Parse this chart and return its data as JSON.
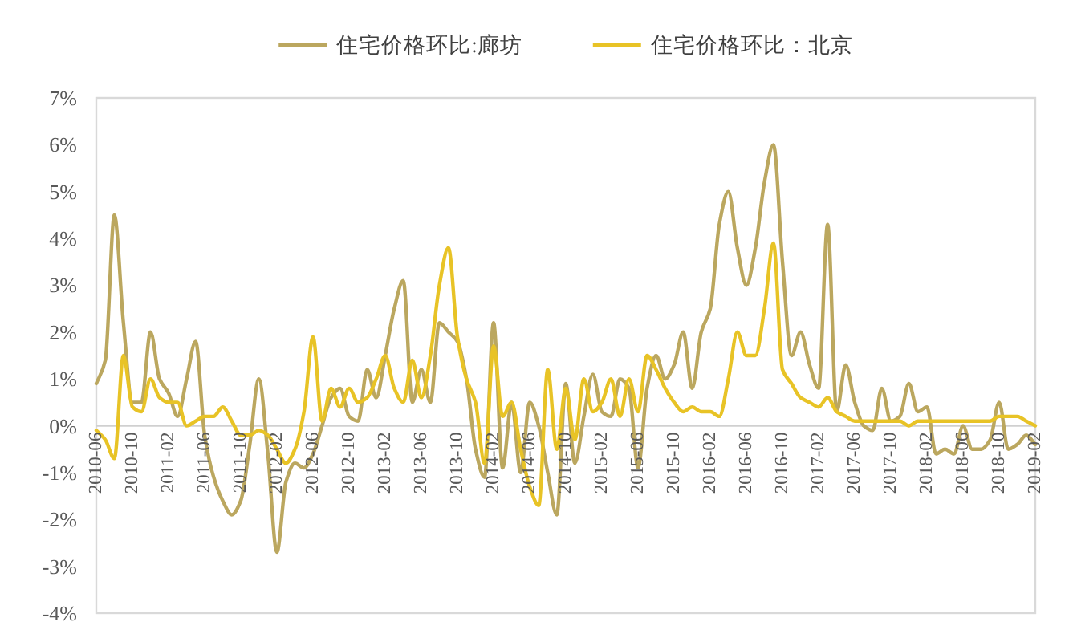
{
  "chart_data": {
    "type": "line",
    "x": [
      "2010-06",
      "2010-07",
      "2010-08",
      "2010-09",
      "2010-10",
      "2010-11",
      "2010-12",
      "2011-01",
      "2011-02",
      "2011-03",
      "2011-04",
      "2011-05",
      "2011-06",
      "2011-07",
      "2011-08",
      "2011-09",
      "2011-10",
      "2011-11",
      "2011-12",
      "2012-01",
      "2012-02",
      "2012-03",
      "2012-04",
      "2012-05",
      "2012-06",
      "2012-07",
      "2012-08",
      "2012-09",
      "2012-10",
      "2012-11",
      "2012-12",
      "2013-01",
      "2013-02",
      "2013-03",
      "2013-04",
      "2013-05",
      "2013-06",
      "2013-07",
      "2013-08",
      "2013-09",
      "2013-10",
      "2013-11",
      "2013-12",
      "2014-01",
      "2014-02",
      "2014-03",
      "2014-04",
      "2014-05",
      "2014-06",
      "2014-07",
      "2014-08",
      "2014-09",
      "2014-10",
      "2014-11",
      "2014-12",
      "2015-01",
      "2015-02",
      "2015-03",
      "2015-04",
      "2015-05",
      "2015-06",
      "2015-07",
      "2015-08",
      "2015-09",
      "2015-10",
      "2015-11",
      "2015-12",
      "2016-01",
      "2016-02",
      "2016-03",
      "2016-04",
      "2016-05",
      "2016-06",
      "2016-07",
      "2016-08",
      "2016-09",
      "2016-10",
      "2016-11",
      "2016-12",
      "2017-01",
      "2017-02",
      "2017-03",
      "2017-04",
      "2017-05",
      "2017-06",
      "2017-07",
      "2017-08",
      "2017-09",
      "2017-10",
      "2017-11",
      "2017-12",
      "2018-01",
      "2018-02",
      "2018-03",
      "2018-04",
      "2018-05",
      "2018-06",
      "2018-07",
      "2018-08",
      "2018-09",
      "2018-10",
      "2018-11",
      "2018-12",
      "2019-01",
      "2019-02"
    ],
    "series": [
      {
        "name": "住宅价格环比:廊坊",
        "color": "#bba75f",
        "values": [
          0.9,
          1.4,
          4.5,
          2.2,
          0.5,
          0.5,
          2.0,
          1.0,
          0.7,
          0.2,
          1.0,
          1.8,
          -0.2,
          -1.1,
          -1.6,
          -1.9,
          -1.6,
          -0.4,
          1.0,
          -0.6,
          -2.7,
          -1.2,
          -0.8,
          -0.9,
          -0.6,
          0.0,
          0.6,
          0.8,
          0.2,
          0.1,
          1.2,
          0.6,
          1.5,
          2.5,
          3.1,
          0.5,
          1.2,
          0.5,
          2.2,
          2.0,
          1.8,
          1.0,
          -0.5,
          -1.1,
          2.2,
          -0.9,
          0.5,
          -1.0,
          0.5,
          0.0,
          -1.0,
          -1.9,
          0.9,
          -0.8,
          0.2,
          1.1,
          0.3,
          0.2,
          1.0,
          0.8,
          -0.9,
          0.8,
          1.5,
          1.0,
          1.3,
          2.0,
          0.8,
          2.0,
          2.5,
          4.3,
          5.0,
          3.8,
          3.0,
          3.8,
          5.2,
          6.0,
          3.5,
          1.5,
          2.0,
          1.3,
          0.8,
          4.3,
          0.3,
          1.3,
          0.5,
          0.0,
          -0.1,
          0.8,
          0.1,
          0.2,
          0.9,
          0.3,
          0.4,
          -0.6,
          -0.5,
          -0.6,
          0.0,
          -0.5,
          -0.5,
          -0.3,
          0.5,
          -0.5,
          -0.4,
          -0.2,
          -0.4
        ]
      },
      {
        "name": "住宅价格环比：北京",
        "color": "#e8c326",
        "values": [
          -0.1,
          -0.3,
          -0.7,
          1.5,
          0.4,
          0.3,
          1.0,
          0.6,
          0.5,
          0.5,
          0.0,
          0.1,
          0.2,
          0.2,
          0.4,
          0.1,
          -0.2,
          -0.2,
          -0.1,
          -0.2,
          -0.5,
          -0.8,
          -0.5,
          0.3,
          1.9,
          0.1,
          0.8,
          0.4,
          0.8,
          0.5,
          0.6,
          1.0,
          1.5,
          0.8,
          0.5,
          1.4,
          0.6,
          1.5,
          3.0,
          3.8,
          1.9,
          1.0,
          0.5,
          -0.8,
          1.7,
          0.2,
          0.5,
          -0.5,
          -1.3,
          -1.7,
          1.2,
          -0.5,
          0.8,
          -0.3,
          1.0,
          0.3,
          0.5,
          1.0,
          0.2,
          1.0,
          0.3,
          1.5,
          1.2,
          0.8,
          0.5,
          0.3,
          0.4,
          0.3,
          0.3,
          0.2,
          1.0,
          2.0,
          1.5,
          1.5,
          2.5,
          3.9,
          1.2,
          0.9,
          0.6,
          0.5,
          0.4,
          0.6,
          0.3,
          0.2,
          0.1,
          0.1,
          0.1,
          0.1,
          0.1,
          0.1,
          0.0,
          0.1,
          0.1,
          0.1,
          0.1,
          0.1,
          0.1,
          0.1,
          0.1,
          0.1,
          0.2,
          0.2,
          0.2,
          0.1,
          0.0
        ]
      }
    ],
    "xlim": [
      "2010-06",
      "2019-02"
    ],
    "xticks": [
      "2010-06",
      "2010-10",
      "2011-02",
      "2011-06",
      "2011-10",
      "2012-02",
      "2012-06",
      "2012-10",
      "2013-02",
      "2013-06",
      "2013-10",
      "2014-02",
      "2014-06",
      "2014-10",
      "2015-02",
      "2015-06",
      "2015-10",
      "2016-02",
      "2016-06",
      "2016-10",
      "2017-02",
      "2017-06",
      "2017-10",
      "2018-02",
      "2018-06",
      "2018-10",
      "2019-02"
    ],
    "ylim": [
      -4,
      7
    ],
    "yticks": [
      {
        "value": 7,
        "label": "7%"
      },
      {
        "value": 6,
        "label": "6%"
      },
      {
        "value": 5,
        "label": "5%"
      },
      {
        "value": 4,
        "label": "4%"
      },
      {
        "value": 3,
        "label": "3%"
      },
      {
        "value": 2,
        "label": "2%"
      },
      {
        "value": 1,
        "label": "1%"
      },
      {
        "value": 0,
        "label": "0%"
      },
      {
        "value": -1,
        "label": "-1%"
      },
      {
        "value": -2,
        "label": "-2%"
      },
      {
        "value": -3,
        "label": "-3%"
      },
      {
        "value": -4,
        "label": "-4%"
      }
    ],
    "legend": "top"
  }
}
